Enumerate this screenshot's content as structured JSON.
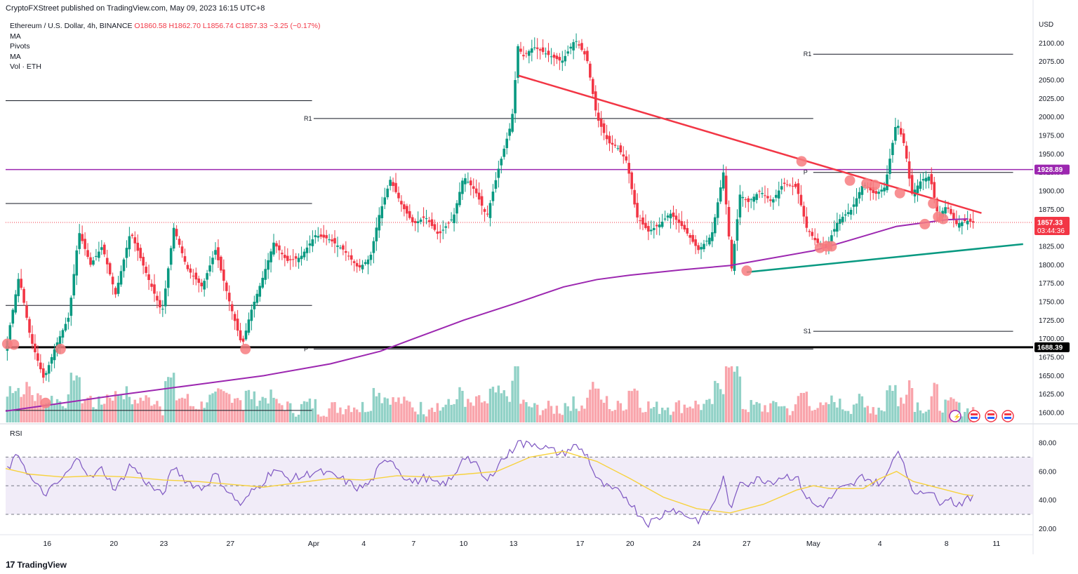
{
  "header": {
    "publisher": "CryptoFXStreet published on TradingView.com, May 09, 2023 16:15 UTC+8"
  },
  "legend": {
    "symbol": "Ethereum / U.S. Dollar, 4h, BINANCE",
    "ohlc": "O1860.58  H1862.70  L1856.74  C1857.33  −3.25 (−0.17%)",
    "indicators": [
      "MA",
      "Pivots",
      "MA",
      "Vol · ETH"
    ]
  },
  "footer": {
    "brand": "TradingView",
    "logo_glyph": "17"
  },
  "rsi_label": "RSI",
  "colors": {
    "up": "#089981",
    "down": "#f23645",
    "ma200": "#9c27b0",
    "resistance_line": "#f23645",
    "support_line": "#089981",
    "horizontal_level": "#9c27b0",
    "rsi_line": "#7e57c2",
    "rsi_ma": "#f7d23e",
    "rsi_band": "#ede7f6",
    "marker": "#f77c80"
  },
  "chart_data": [
    {
      "type": "candlestick",
      "title": "Ethereum / U.S. Dollar, 4h, BINANCE",
      "ylabel": "USD",
      "ylim": [
        1590,
        2150
      ],
      "y_ticks": [
        1600,
        1625,
        1650,
        1675,
        1700,
        1725,
        1750,
        1775,
        1800,
        1825,
        1850,
        1875,
        1900,
        1925,
        1950,
        1975,
        2000,
        2025,
        2050,
        2075,
        2100
      ],
      "y_tick_labels": [
        "1600.00",
        "1625.00",
        "1650.00",
        "1675.00",
        "1700.00",
        "1725.00",
        "1750.00",
        "1775.00",
        "1800.00",
        "1825.00",
        "1850.00",
        "1875.00",
        "1900.00",
        "1925.00",
        "1950.00",
        "1975.00",
        "2000.00",
        "2025.00",
        "2050.00",
        "2075.00",
        "2100.00"
      ],
      "x_tick_labels": [
        "16",
        "20",
        "23",
        "27",
        "Apr",
        "4",
        "7",
        "10",
        "13",
        "17",
        "20",
        "24",
        "27",
        "May",
        "4",
        "8",
        "11"
      ],
      "x_tick_days": [
        16,
        20,
        23,
        27,
        32,
        35,
        38,
        41,
        44,
        48,
        51,
        55,
        58,
        62,
        66,
        70,
        73
      ],
      "x_day_range": [
        13.5,
        75.2
      ],
      "price_anchors": {
        "days": [
          13.5,
          14.3,
          15.0,
          15.8,
          16.5,
          17.3,
          17.9,
          18.6,
          19.3,
          20.1,
          21.0,
          22.0,
          22.9,
          23.6,
          24.4,
          25.3,
          26.1,
          27.0,
          27.7,
          28.2,
          28.9,
          29.6,
          30.4,
          31.2,
          32.1,
          32.9,
          33.8,
          34.7,
          35.4,
          35.9,
          36.6,
          37.3,
          38.0,
          38.7,
          39.5,
          40.4,
          41.0,
          41.7,
          42.4,
          43.1,
          43.9,
          44.3,
          44.5,
          45.2,
          46.0,
          46.9,
          47.7,
          48.4,
          49.0,
          49.7,
          50.2,
          50.8,
          51.4,
          52.1,
          52.8,
          53.4,
          54.2,
          55.1,
          55.9,
          56.6,
          57.1,
          57.6,
          58.1,
          58.8,
          59.5,
          60.2,
          61.0,
          61.6,
          62.2,
          62.8,
          63.5,
          64.3,
          65.0,
          65.7,
          66.3,
          67.0,
          67.5,
          67.9,
          68.5,
          69.0,
          69.5,
          70.0,
          70.6,
          71.2,
          71.6
        ],
        "close": [
          1685,
          1785,
          1700,
          1645,
          1690,
          1730,
          1845,
          1800,
          1825,
          1760,
          1845,
          1785,
          1735,
          1850,
          1795,
          1770,
          1820,
          1745,
          1690,
          1735,
          1780,
          1830,
          1805,
          1810,
          1840,
          1835,
          1820,
          1795,
          1810,
          1865,
          1915,
          1880,
          1855,
          1865,
          1840,
          1865,
          1920,
          1900,
          1865,
          1930,
          1995,
          2105,
          2080,
          2095,
          2085,
          2075,
          2105,
          2080,
          2000,
          1965,
          1960,
          1940,
          1865,
          1845,
          1855,
          1870,
          1850,
          1820,
          1840,
          1925,
          1795,
          1895,
          1885,
          1900,
          1885,
          1910,
          1905,
          1850,
          1830,
          1825,
          1860,
          1875,
          1910,
          1895,
          1905,
          1995,
          1960,
          1895,
          1915,
          1920,
          1865,
          1880,
          1855,
          1860,
          1857
        ]
      },
      "ohlc_last": {
        "open": 1860.58,
        "high": 1862.7,
        "low": 1856.74,
        "close": 1857.33,
        "change": -3.25,
        "change_pct": -0.17
      },
      "ma200": {
        "days": [
          13.5,
          16,
          20,
          25,
          29,
          33,
          36,
          38,
          41,
          44,
          47,
          49,
          51,
          54,
          57,
          59,
          62,
          64,
          67,
          70,
          71.3
        ],
        "values": [
          1602,
          1610,
          1623,
          1638,
          1650,
          1666,
          1683,
          1700,
          1725,
          1747,
          1770,
          1780,
          1786,
          1793,
          1799,
          1807,
          1819,
          1832,
          1852,
          1861,
          1862
        ]
      },
      "volume": {
        "shown": true,
        "label": "Vol · ETH"
      },
      "annotations": {
        "horizontal_levels": [
          {
            "label": "1928.89",
            "value": 1928.89,
            "color": "#9c27b0",
            "kind": "resistance"
          },
          {
            "label": "1688.39",
            "value": 1688.39,
            "color": "#000000",
            "kind": "support"
          }
        ],
        "current_price": {
          "label": "1857.33",
          "countdown": "03:44:36",
          "value": 1857.33
        },
        "pivots": [
          {
            "label": "R1",
            "value": 1998,
            "from_day": 32,
            "to_day": 62
          },
          {
            "label": "P",
            "value": 1686,
            "from_day": 32,
            "to_day": 62
          },
          {
            "label": "R1",
            "value": 2085,
            "from_day": 62,
            "to_day": 74
          },
          {
            "label": "P",
            "value": 1925,
            "from_day": 62,
            "to_day": 74
          },
          {
            "label": "S1",
            "value": 1710,
            "from_day": 62,
            "to_day": 74
          }
        ],
        "prior_levels": [
          2022,
          1883,
          1745,
          1603
        ],
        "trendlines": [
          {
            "name": "descending resistance",
            "from": [
              44.3,
              2056
            ],
            "to": [
              72.1,
              1870
            ]
          },
          {
            "name": "ascending support",
            "from": [
              58.0,
              1790
            ],
            "to": [
              74.6,
              1828
            ]
          }
        ],
        "touch_markers": [
          [
            13.6,
            1693
          ],
          [
            14.0,
            1692
          ],
          [
            15.9,
            1613
          ],
          [
            16.8,
            1686
          ],
          [
            27.9,
            1686
          ],
          [
            58.0,
            1792
          ],
          [
            61.3,
            1940
          ],
          [
            62.4,
            1823
          ],
          [
            62.8,
            1825
          ],
          [
            63.1,
            1825
          ],
          [
            64.2,
            1914
          ],
          [
            65.2,
            1910
          ],
          [
            65.7,
            1908
          ],
          [
            67.2,
            1897
          ],
          [
            68.7,
            1855
          ],
          [
            69.2,
            1883
          ],
          [
            69.5,
            1865
          ],
          [
            69.8,
            1862
          ]
        ]
      }
    },
    {
      "type": "line",
      "title": "RSI",
      "ylim": [
        15,
        88
      ],
      "y_ticks": [
        20,
        40,
        60,
        80
      ],
      "y_tick_labels": [
        "20.00",
        "40.00",
        "60.00",
        "80.00"
      ],
      "bands": {
        "upper": 70,
        "middle": 50,
        "lower": 30
      },
      "rsi": {
        "days": [
          13.5,
          14.3,
          15.0,
          15.8,
          16.5,
          17.3,
          17.9,
          18.6,
          19.3,
          20.1,
          21.0,
          22.0,
          22.9,
          23.6,
          24.4,
          25.3,
          26.1,
          27.0,
          27.7,
          28.2,
          28.9,
          29.6,
          30.4,
          31.2,
          32.1,
          32.9,
          33.8,
          34.7,
          35.4,
          35.9,
          36.6,
          37.3,
          38.0,
          38.7,
          39.5,
          40.4,
          41.0,
          41.7,
          42.4,
          43.1,
          43.9,
          44.3,
          44.5,
          45.2,
          46.0,
          46.9,
          47.7,
          48.4,
          49.0,
          49.7,
          50.2,
          50.8,
          51.4,
          52.1,
          52.8,
          53.4,
          54.2,
          55.1,
          55.9,
          56.6,
          57.1,
          57.6,
          58.1,
          58.8,
          59.5,
          60.2,
          61.0,
          61.6,
          62.2,
          62.8,
          63.5,
          64.3,
          65.0,
          65.7,
          66.3,
          67.0,
          67.5,
          67.9,
          68.5,
          69.0,
          69.5,
          70.0,
          70.6,
          71.2,
          71.6
        ],
        "values": [
          60,
          72,
          55,
          44,
          50,
          60,
          70,
          55,
          62,
          47,
          65,
          52,
          43,
          63,
          53,
          48,
          58,
          44,
          36,
          45,
          52,
          62,
          55,
          56,
          60,
          58,
          54,
          48,
          52,
          62,
          70,
          58,
          52,
          56,
          50,
          55,
          72,
          65,
          52,
          66,
          74,
          84,
          78,
          80,
          76,
          72,
          78,
          72,
          54,
          48,
          46,
          42,
          32,
          24,
          28,
          35,
          30,
          26,
          34,
          55,
          32,
          54,
          52,
          55,
          53,
          57,
          56,
          42,
          35,
          38,
          47,
          50,
          57,
          52,
          53,
          76,
          66,
          44,
          47,
          47,
          38,
          43,
          37,
          40,
          41
        ]
      },
      "rsi_ma": {
        "days": [
          13.5,
          15,
          17,
          19,
          21,
          23,
          25,
          27,
          29,
          31,
          33,
          35,
          37,
          39,
          41,
          43,
          45,
          47,
          49,
          51,
          53,
          55,
          57,
          59,
          61,
          62,
          63,
          65,
          66,
          67,
          68,
          69,
          70,
          71,
          71.6
        ],
        "values": [
          62,
          58,
          56,
          57,
          56,
          54,
          53,
          51,
          49,
          52,
          55,
          54,
          57,
          56,
          58,
          60,
          70,
          74,
          67,
          55,
          42,
          34,
          31,
          37,
          47,
          50,
          48,
          48,
          55,
          60,
          53,
          50,
          47,
          44,
          43
        ]
      }
    }
  ]
}
